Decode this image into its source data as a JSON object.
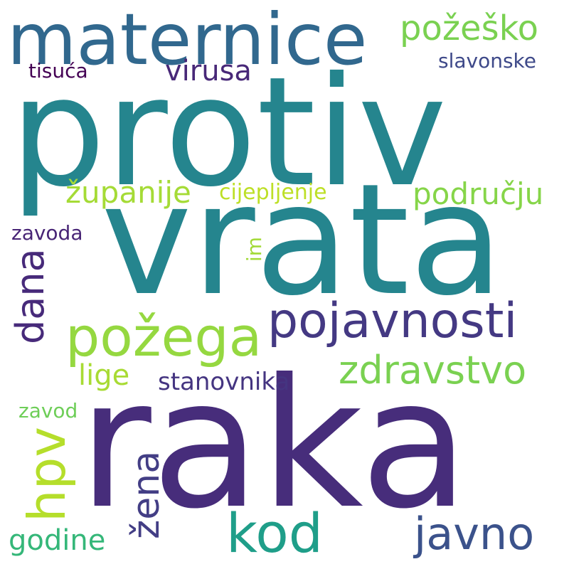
{
  "word_cloud": {
    "words": [
      {
        "text": "protiv",
        "color": "#25858e"
      },
      {
        "text": "vrata",
        "color": "#25858e"
      },
      {
        "text": "raka",
        "color": "#472d7b"
      },
      {
        "text": "maternice",
        "color": "#31688e"
      },
      {
        "text": "požega",
        "color": "#95d840"
      },
      {
        "text": "pojavnosti",
        "color": "#443983"
      },
      {
        "text": "zdravstvo",
        "color": "#7ad151"
      },
      {
        "text": "kod",
        "color": "#1f9e89"
      },
      {
        "text": "javno",
        "color": "#3b528b"
      },
      {
        "text": "požeško",
        "color": "#7ad151"
      },
      {
        "text": "županije",
        "color": "#a5db36"
      },
      {
        "text": "području",
        "color": "#86d549"
      },
      {
        "text": "virusa",
        "color": "#482878"
      },
      {
        "text": "tisuća",
        "color": "#440154"
      },
      {
        "text": "slavonske",
        "color": "#3e4989"
      },
      {
        "text": "cijepljenje",
        "color": "#bddf26"
      },
      {
        "text": "zavoda",
        "color": "#482576"
      },
      {
        "text": "lige",
        "color": "#a8db34"
      },
      {
        "text": "stanovnika",
        "color": "#453581"
      },
      {
        "text": "zavod",
        "color": "#6ece58"
      },
      {
        "text": "godine",
        "color": "#35b779"
      },
      {
        "text": "dana",
        "color": "#472a7a"
      },
      {
        "text": "hpv",
        "color": "#b5de2b"
      },
      {
        "text": "žena",
        "color": "#433e85"
      },
      {
        "text": "im",
        "color": "#a2da37"
      }
    ]
  }
}
